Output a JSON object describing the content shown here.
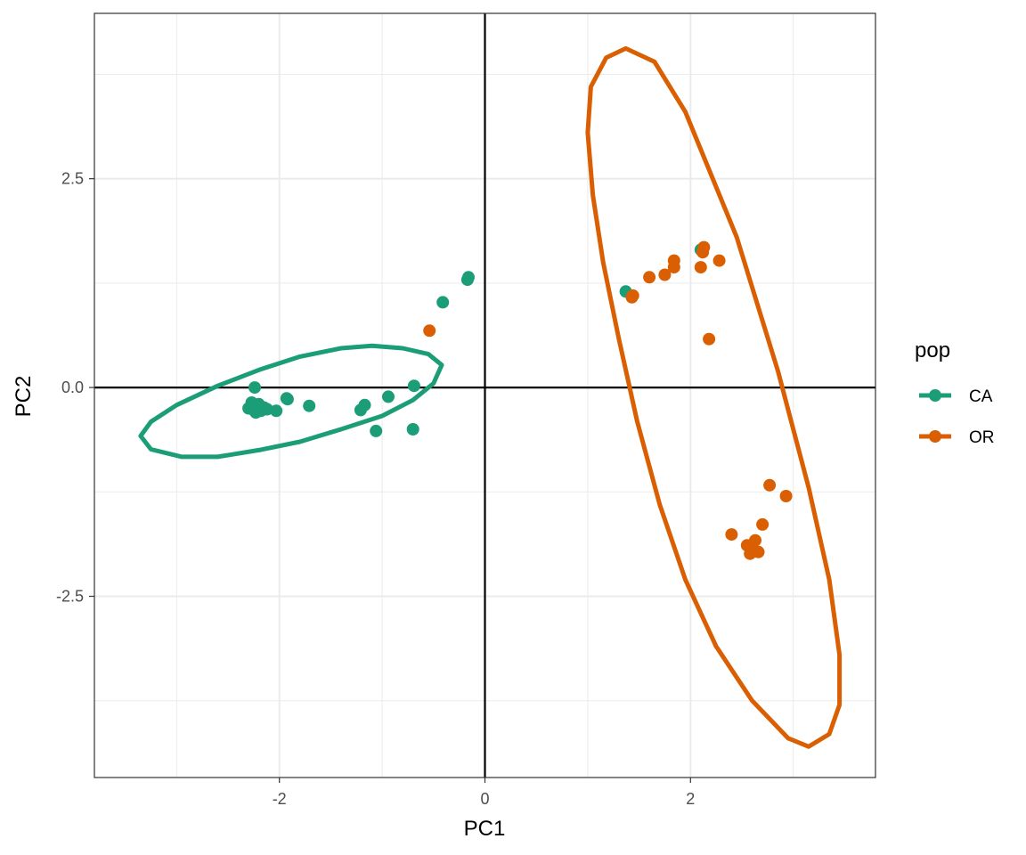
{
  "chart_data": {
    "type": "scatter",
    "title": "",
    "xlabel": "PC1",
    "ylabel": "PC2",
    "xlim": [
      -3.8,
      3.8
    ],
    "ylim": [
      -4.67,
      4.48
    ],
    "grid": true,
    "reference_lines": {
      "x": 0,
      "y": 0
    },
    "x_ticks": [
      {
        "value": -2,
        "label": "-2"
      },
      {
        "value": 0,
        "label": "0"
      },
      {
        "value": 2,
        "label": "2"
      }
    ],
    "y_ticks": [
      {
        "value": 2.5,
        "label": "2.5"
      },
      {
        "value": 0,
        "label": "0.0"
      },
      {
        "value": -2.5,
        "label": "-2.5"
      }
    ],
    "legend": {
      "title": "pop",
      "position": "right",
      "entries": [
        {
          "label": "CA",
          "color": "#1B9E77"
        },
        {
          "label": "OR",
          "color": "#D95F02"
        }
      ]
    },
    "series": [
      {
        "name": "CA",
        "color": "#1B9E77",
        "points": [
          [
            -2.3,
            -0.25
          ],
          [
            -2.27,
            -0.18
          ],
          [
            -2.25,
            -0.27
          ],
          [
            -2.23,
            -0.3
          ],
          [
            -2.22,
            -0.22
          ],
          [
            -2.2,
            -0.2
          ],
          [
            -2.18,
            -0.28
          ],
          [
            -2.15,
            -0.24
          ],
          [
            -2.24,
            0.0
          ],
          [
            -2.12,
            -0.26
          ],
          [
            -2.03,
            -0.28
          ],
          [
            -1.93,
            -0.13
          ],
          [
            -1.92,
            -0.14
          ],
          [
            -1.71,
            -0.22
          ],
          [
            -1.21,
            -0.27
          ],
          [
            -1.17,
            -0.21
          ],
          [
            -1.06,
            -0.52
          ],
          [
            -0.94,
            -0.11
          ],
          [
            -0.7,
            -0.5
          ],
          [
            -0.69,
            0.02
          ],
          [
            -0.41,
            1.02
          ],
          [
            -0.17,
            1.29
          ],
          [
            -0.16,
            1.32
          ],
          [
            1.37,
            1.15
          ],
          [
            2.1,
            1.65
          ]
        ],
        "ellipse": [
          [
            -0.42,
            0.27
          ],
          [
            -0.55,
            0.4
          ],
          [
            -0.8,
            0.47
          ],
          [
            -1.1,
            0.5
          ],
          [
            -1.4,
            0.47
          ],
          [
            -1.8,
            0.37
          ],
          [
            -2.2,
            0.21
          ],
          [
            -2.6,
            0.02
          ],
          [
            -3.0,
            -0.21
          ],
          [
            -3.25,
            -0.41
          ],
          [
            -3.35,
            -0.58
          ],
          [
            -3.25,
            -0.74
          ],
          [
            -2.95,
            -0.83
          ],
          [
            -2.6,
            -0.83
          ],
          [
            -2.2,
            -0.75
          ],
          [
            -1.8,
            -0.65
          ],
          [
            -1.4,
            -0.5
          ],
          [
            -1.0,
            -0.34
          ],
          [
            -0.7,
            -0.15
          ],
          [
            -0.5,
            0.05
          ],
          [
            -0.42,
            0.27
          ]
        ]
      },
      {
        "name": "OR",
        "color": "#D95F02",
        "points": [
          [
            -0.54,
            0.68
          ],
          [
            1.43,
            1.08
          ],
          [
            1.44,
            1.1
          ],
          [
            1.6,
            1.32
          ],
          [
            1.75,
            1.35
          ],
          [
            1.84,
            1.44
          ],
          [
            1.84,
            1.52
          ],
          [
            2.1,
            1.44
          ],
          [
            2.12,
            1.62
          ],
          [
            2.13,
            1.68
          ],
          [
            2.28,
            1.52
          ],
          [
            2.18,
            0.58
          ],
          [
            2.77,
            -1.17
          ],
          [
            2.93,
            -1.3
          ],
          [
            2.7,
            -1.64
          ],
          [
            2.4,
            -1.76
          ],
          [
            2.55,
            -1.89
          ],
          [
            2.63,
            -1.83
          ],
          [
            2.58,
            -1.99
          ],
          [
            2.6,
            -1.97
          ],
          [
            2.66,
            -1.97
          ]
        ],
        "ellipse": [
          [
            1.37,
            4.06
          ],
          [
            1.18,
            3.95
          ],
          [
            1.03,
            3.6
          ],
          [
            1.0,
            3.05
          ],
          [
            1.05,
            2.3
          ],
          [
            1.15,
            1.5
          ],
          [
            1.3,
            0.6
          ],
          [
            1.48,
            -0.4
          ],
          [
            1.7,
            -1.4
          ],
          [
            1.95,
            -2.3
          ],
          [
            2.25,
            -3.1
          ],
          [
            2.6,
            -3.75
          ],
          [
            2.95,
            -4.2
          ],
          [
            3.15,
            -4.3
          ],
          [
            3.35,
            -4.15
          ],
          [
            3.45,
            -3.8
          ],
          [
            3.45,
            -3.2
          ],
          [
            3.35,
            -2.3
          ],
          [
            3.15,
            -1.2
          ],
          [
            2.85,
            0.2
          ],
          [
            2.45,
            1.8
          ],
          [
            1.95,
            3.3
          ],
          [
            1.65,
            3.9
          ],
          [
            1.37,
            4.06
          ]
        ]
      }
    ]
  }
}
